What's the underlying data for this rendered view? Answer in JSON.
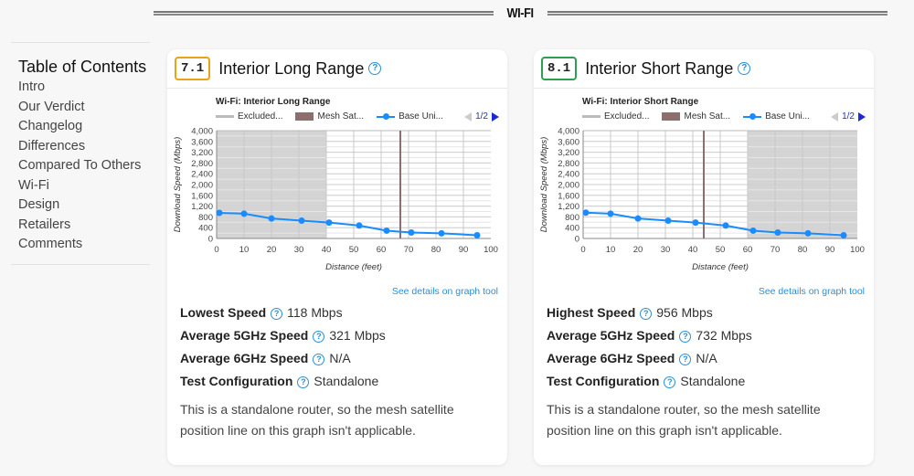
{
  "section": {
    "title": "WI-FI"
  },
  "toc": {
    "title": "Table of Contents",
    "items": [
      "Intro",
      "Our Verdict",
      "Changelog",
      "Differences",
      "Compared To Others",
      "Wi-Fi",
      "Design",
      "Retailers",
      "Comments"
    ]
  },
  "cards": [
    {
      "score": "7.1",
      "score_color": "#e8a317",
      "title": "Interior Long Range",
      "chart_title": "Wi-Fi: Interior Long Range",
      "legend": {
        "excluded": "Excluded...",
        "mesh": "Mesh Sat...",
        "base": "Base Uni...",
        "page": "1/2"
      },
      "details_link": "See details on graph tool",
      "stats": [
        {
          "label": "Lowest Speed",
          "value": "118 Mbps"
        },
        {
          "label": "Average 5GHz Speed",
          "value": "321 Mbps"
        },
        {
          "label": "Average 6GHz Speed",
          "value": "N/A"
        },
        {
          "label": "Test Configuration",
          "value": "Standalone"
        }
      ],
      "note": "This is a standalone router, so the mesh satellite position line on this graph isn't applicable."
    },
    {
      "score": "8.1",
      "score_color": "#2e9e4f",
      "title": "Interior Short Range",
      "chart_title": "Wi-Fi: Interior Short Range",
      "legend": {
        "excluded": "Excluded...",
        "mesh": "Mesh Sat...",
        "base": "Base Uni...",
        "page": "1/2"
      },
      "details_link": "See details on graph tool",
      "stats": [
        {
          "label": "Highest Speed",
          "value": "956 Mbps"
        },
        {
          "label": "Average 5GHz Speed",
          "value": "732 Mbps"
        },
        {
          "label": "Average 6GHz Speed",
          "value": "N/A"
        },
        {
          "label": "Test Configuration",
          "value": "Standalone"
        }
      ],
      "note": "This is a standalone router, so the mesh satellite position line on this graph isn't applicable."
    }
  ],
  "chart_data": [
    {
      "type": "line",
      "title": "Wi-Fi: Interior Long Range",
      "xlabel": "Distance (feet)",
      "ylabel": "Download Speed (Mbps)",
      "xlim": [
        0,
        100
      ],
      "ylim": [
        0,
        4000
      ],
      "xticks": [
        0,
        10,
        20,
        30,
        40,
        50,
        60,
        70,
        80,
        90,
        100
      ],
      "yticks": [
        "0",
        "400",
        "800",
        "1,200",
        "1,600",
        "2,000",
        "2,400",
        "2,800",
        "3,200",
        "3,600",
        "4,000"
      ],
      "legend": [
        "Excluded...",
        "Mesh Sat...",
        "Base Uni..."
      ],
      "excluded_range": [
        0,
        40
      ],
      "mesh_line_x": 67,
      "series": [
        {
          "name": "Base Unit",
          "color": "#1a8cff",
          "x": [
            1,
            10,
            20,
            31,
            41,
            52,
            62,
            71,
            82,
            95
          ],
          "values": [
            950,
            920,
            740,
            660,
            590,
            480,
            290,
            220,
            190,
            118
          ]
        }
      ]
    },
    {
      "type": "line",
      "title": "Wi-Fi: Interior Short Range",
      "xlabel": "Distance (feet)",
      "ylabel": "Download Speed (Mbps)",
      "xlim": [
        0,
        100
      ],
      "ylim": [
        0,
        4000
      ],
      "xticks": [
        0,
        10,
        20,
        30,
        40,
        50,
        60,
        70,
        80,
        90,
        100
      ],
      "yticks": [
        "0",
        "400",
        "800",
        "1,200",
        "1,600",
        "2,000",
        "2,400",
        "2,800",
        "3,200",
        "3,600",
        "4,000"
      ],
      "legend": [
        "Excluded...",
        "Mesh Sat...",
        "Base Uni..."
      ],
      "excluded_range": [
        60,
        100
      ],
      "mesh_line_x": 44,
      "series": [
        {
          "name": "Base Unit",
          "color": "#1a8cff",
          "x": [
            1,
            10,
            20,
            31,
            41,
            52,
            62,
            71,
            82,
            95
          ],
          "values": [
            956,
            920,
            740,
            660,
            590,
            480,
            290,
            220,
            190,
            118
          ]
        }
      ]
    }
  ]
}
